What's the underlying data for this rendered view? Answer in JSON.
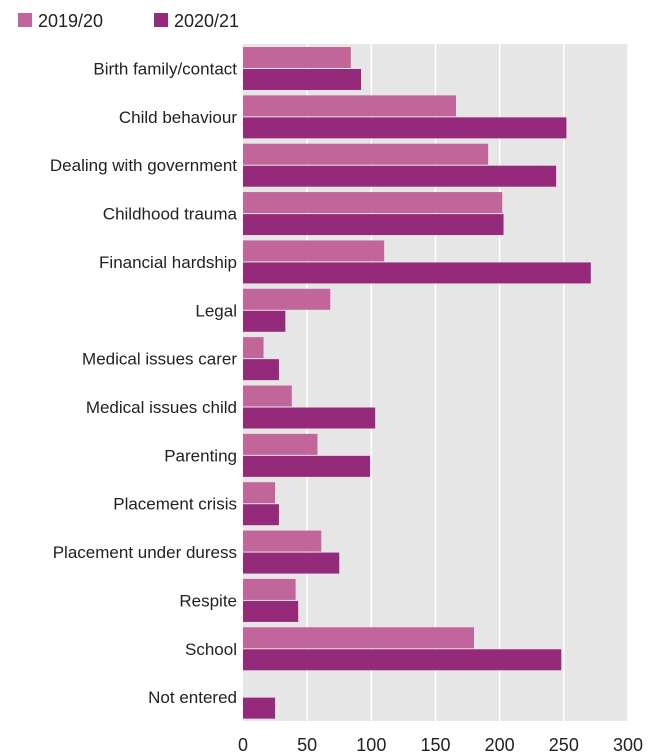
{
  "chart_data": {
    "type": "bar",
    "orientation": "horizontal",
    "title": "",
    "xlabel": "",
    "ylabel": "",
    "categories": [
      "Birth family/contact",
      "Child behaviour",
      "Dealing with government",
      "Childhood trauma",
      "Financial hardship",
      "Legal",
      "Medical issues carer",
      "Medical issues child",
      "Parenting",
      "Placement crisis",
      "Placement under duress",
      "Respite",
      "School",
      "Not entered"
    ],
    "series": [
      {
        "name": "2019/20",
        "color": "#c2659b",
        "values": [
          84,
          166,
          191,
          202,
          110,
          68,
          16,
          38,
          58,
          25,
          61,
          41,
          180,
          0
        ]
      },
      {
        "name": "2020/21",
        "color": "#952a7a",
        "values": [
          92,
          252,
          244,
          203,
          271,
          33,
          28,
          103,
          99,
          28,
          75,
          43,
          248,
          25
        ]
      }
    ],
    "xlim": [
      0,
      300
    ],
    "xticks": [
      "0",
      "50",
      "100",
      "150",
      "200",
      "250",
      "300"
    ],
    "grid": true,
    "legend": "top-left",
    "background": "#e6e6e6",
    "grid_color": "#ffffff"
  }
}
